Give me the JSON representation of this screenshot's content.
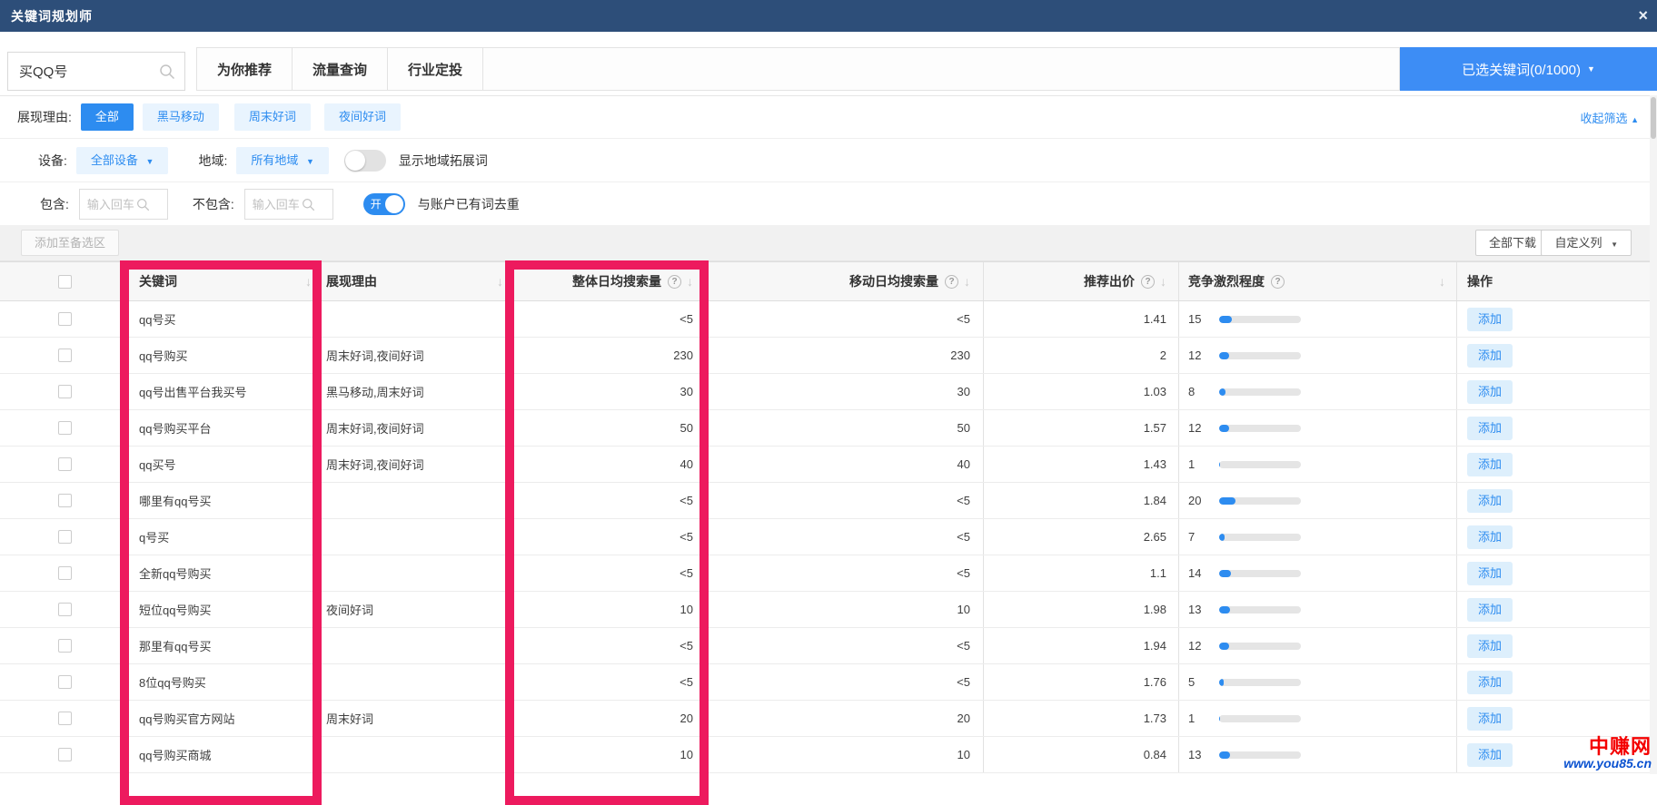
{
  "colors": {
    "topbar": "#2d4e79",
    "accent": "#2d8cf0",
    "accent_button": "#3d8df5",
    "chip_bg": "#e9f4fe",
    "highlight": "#ed1a5e"
  },
  "icons": {
    "close": "×",
    "caret_down": "▼",
    "caret_up": "▲",
    "sort_desc": "↓",
    "help": "?"
  },
  "topbar": {
    "title": "关键词规划师"
  },
  "search": {
    "value": "买QQ号"
  },
  "tabs": [
    "为你推荐",
    "流量查询",
    "行业定投"
  ],
  "selected_keywords_button": {
    "label": "已选关键词(0/1000)"
  },
  "filter": {
    "reason_label": "展现理由:",
    "reason_chips": [
      {
        "label": "全部"
      },
      {
        "label": "黑马移动"
      },
      {
        "label": "周末好词"
      },
      {
        "label": "夜间好词"
      }
    ],
    "collapse_link": "收起筛选",
    "device_label": "设备:",
    "device_value": "全部设备",
    "region_label": "地域:",
    "region_value": "所有地域",
    "region_expand_label": "显示地域拓展词",
    "include_label": "包含:",
    "include_placeholder": "输入回车",
    "exclude_label": "不包含:",
    "exclude_placeholder": "输入回车",
    "dedupe_toggle_text": "开",
    "dedupe_label": "与账户已有词去重"
  },
  "toolbar": {
    "add_to_candidates": "添加至备选区",
    "download_all": "全部下载",
    "custom_columns": "自定义列"
  },
  "table": {
    "columns": [
      "关键词",
      "展现理由",
      "整体日均搜索量",
      "移动日均搜索量",
      "推荐出价",
      "竞争激烈程度",
      "操作"
    ],
    "add_label": "添加",
    "rows": [
      {
        "keyword": "qq号买",
        "reason": "",
        "overall": "<5",
        "mobile": "<5",
        "bid": "1.41",
        "competition": 15
      },
      {
        "keyword": "qq号购买",
        "reason": "周末好词,夜间好词",
        "overall": "230",
        "mobile": "230",
        "bid": "2",
        "competition": 12
      },
      {
        "keyword": "qq号出售平台我买号",
        "reason": "黑马移动,周末好词",
        "overall": "30",
        "mobile": "30",
        "bid": "1.03",
        "competition": 8
      },
      {
        "keyword": "qq号购买平台",
        "reason": "周末好词,夜间好词",
        "overall": "50",
        "mobile": "50",
        "bid": "1.57",
        "competition": 12
      },
      {
        "keyword": "qq买号",
        "reason": "周末好词,夜间好词",
        "overall": "40",
        "mobile": "40",
        "bid": "1.43",
        "competition": 1
      },
      {
        "keyword": "哪里有qq号买",
        "reason": "",
        "overall": "<5",
        "mobile": "<5",
        "bid": "1.84",
        "competition": 20
      },
      {
        "keyword": "q号买",
        "reason": "",
        "overall": "<5",
        "mobile": "<5",
        "bid": "2.65",
        "competition": 7
      },
      {
        "keyword": "全新qq号购买",
        "reason": "",
        "overall": "<5",
        "mobile": "<5",
        "bid": "1.1",
        "competition": 14
      },
      {
        "keyword": "短位qq号购买",
        "reason": "夜间好词",
        "overall": "10",
        "mobile": "10",
        "bid": "1.98",
        "competition": 13
      },
      {
        "keyword": "那里有qq号买",
        "reason": "",
        "overall": "<5",
        "mobile": "<5",
        "bid": "1.94",
        "competition": 12
      },
      {
        "keyword": "8位qq号购买",
        "reason": "",
        "overall": "<5",
        "mobile": "<5",
        "bid": "1.76",
        "competition": 5
      },
      {
        "keyword": "qq号购买官方网站",
        "reason": "周末好词",
        "overall": "20",
        "mobile": "20",
        "bid": "1.73",
        "competition": 1
      },
      {
        "keyword": "qq号购买商城",
        "reason": "",
        "overall": "10",
        "mobile": "10",
        "bid": "0.84",
        "competition": 13
      }
    ]
  },
  "watermark": {
    "line1": "中赚网",
    "line2": "www.you85.cn"
  }
}
